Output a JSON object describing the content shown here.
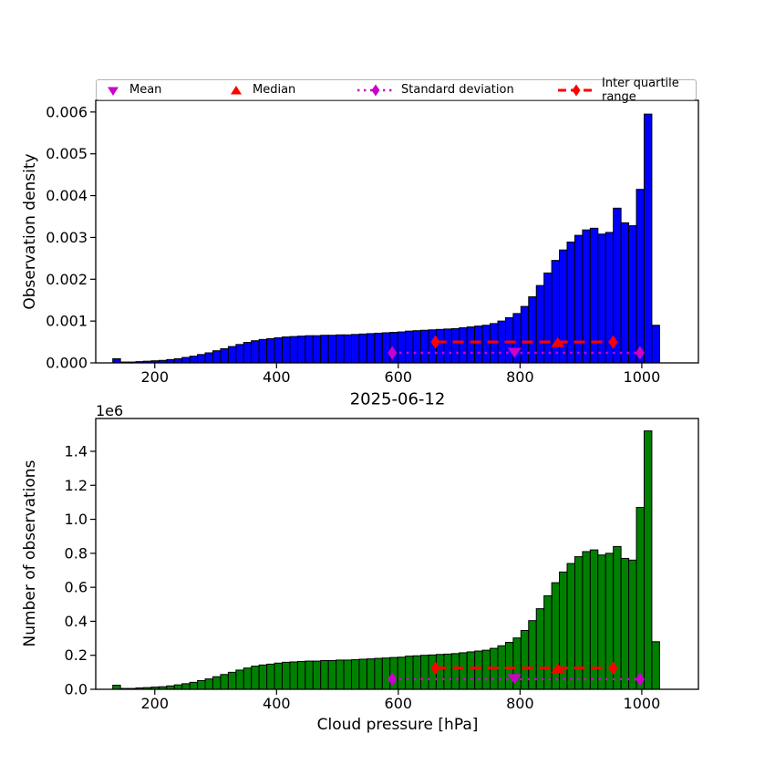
{
  "figure": {
    "title": "2025-06-12",
    "xlabel": "Cloud pressure [hPa]",
    "background": "#ffffff"
  },
  "colors": {
    "blue": "#0000FF",
    "green": "#008000",
    "red": "#FF0000",
    "magenta": "#CC00CC",
    "bar_edge": "#000000",
    "axis": "#000000",
    "legend_border": "#b3b3b3"
  },
  "legend": {
    "items": [
      {
        "label": "Mean",
        "marker": "triangle-down",
        "color_key": "magenta",
        "line": "none"
      },
      {
        "label": "Median",
        "marker": "triangle-up",
        "color_key": "red",
        "line": "none"
      },
      {
        "label": "Standard deviation",
        "marker": "diamond",
        "color_key": "magenta",
        "line": "dotted"
      },
      {
        "label": "Inter quartile range",
        "marker": "diamond",
        "color_key": "red",
        "line": "dashed"
      }
    ]
  },
  "stats": {
    "mean_hpa": 791,
    "median_hpa": 862,
    "std_range_hpa": [
      590,
      997
    ],
    "iqr_range_hpa": [
      661,
      953
    ]
  },
  "chart_data": [
    {
      "type": "bar",
      "title": "",
      "ylabel": "Observation density",
      "bar_color_key": "blue",
      "bin_start": 131,
      "bin_width": 12.65,
      "values": [
        0.0001,
        2e-05,
        2e-05,
        3e-05,
        4e-05,
        5e-05,
        6e-05,
        8e-05,
        0.0001,
        0.00013,
        0.00016,
        0.0002,
        0.00024,
        0.00029,
        0.00034,
        0.00039,
        0.00044,
        0.00049,
        0.00053,
        0.00056,
        0.00058,
        0.0006,
        0.00062,
        0.00063,
        0.00064,
        0.00065,
        0.00065,
        0.00066,
        0.00066,
        0.00067,
        0.00067,
        0.00068,
        0.00069,
        0.0007,
        0.00071,
        0.00072,
        0.00073,
        0.00074,
        0.00076,
        0.00077,
        0.00078,
        0.00079,
        0.0008,
        0.00081,
        0.00082,
        0.00084,
        0.00086,
        0.00088,
        0.0009,
        0.00094,
        0.001,
        0.00108,
        0.00118,
        0.00135,
        0.00158,
        0.00185,
        0.00215,
        0.00245,
        0.0027,
        0.00289,
        0.00305,
        0.00318,
        0.00322,
        0.00308,
        0.00312,
        0.0037,
        0.00335,
        0.00328,
        0.00415,
        0.00595,
        0.0009
      ],
      "xlim": [
        103,
        1093
      ],
      "ylim": [
        0,
        0.00628
      ],
      "xticks": [
        200,
        400,
        600,
        800,
        1000
      ],
      "xtick_labels": [
        "200",
        "400",
        "600",
        "800",
        "1000"
      ],
      "yticks": [
        0,
        0.001,
        0.002,
        0.003,
        0.004,
        0.005,
        0.006
      ],
      "ytick_labels": [
        "0.000",
        "0.001",
        "0.002",
        "0.003",
        "0.004",
        "0.005",
        "0.006"
      ],
      "marker_lines": {
        "std_y": 0.00024,
        "iqr_y": 0.0005
      }
    },
    {
      "type": "bar",
      "title": "2025-06-12",
      "ylabel": "Number of observations",
      "offset_text": "1e6",
      "xlabel": "Cloud pressure [hPa]",
      "bar_color_key": "green",
      "bin_start": 131,
      "bin_width": 12.65,
      "values": [
        24000,
        5000,
        5000,
        8000,
        10000,
        13000,
        15000,
        20000,
        26000,
        33000,
        41000,
        51000,
        61000,
        74000,
        87000,
        100000,
        113000,
        125000,
        136000,
        143000,
        148000,
        154000,
        159000,
        161000,
        164000,
        166000,
        166000,
        169000,
        169000,
        172000,
        172000,
        174000,
        177000,
        179000,
        182000,
        184000,
        187000,
        189000,
        195000,
        197000,
        200000,
        202000,
        205000,
        207000,
        210000,
        215000,
        220000,
        225000,
        230000,
        241000,
        256000,
        276000,
        302000,
        346000,
        404000,
        474000,
        550000,
        627000,
        690000,
        740000,
        780000,
        810000,
        820000,
        790000,
        800000,
        840000,
        770000,
        760000,
        1070000,
        1520000,
        280000
      ],
      "xlim": [
        103,
        1093
      ],
      "ylim": [
        0,
        1593000
      ],
      "xticks": [
        200,
        400,
        600,
        800,
        1000
      ],
      "xtick_labels": [
        "200",
        "400",
        "600",
        "800",
        "1000"
      ],
      "yticks": [
        0,
        200000,
        400000,
        600000,
        800000,
        1000000,
        1200000,
        1400000
      ],
      "ytick_labels": [
        "0.0",
        "0.2",
        "0.4",
        "0.6",
        "0.8",
        "1.0",
        "1.2",
        "1.4"
      ],
      "marker_lines": {
        "std_y": 60000,
        "iqr_y": 125000
      }
    }
  ]
}
